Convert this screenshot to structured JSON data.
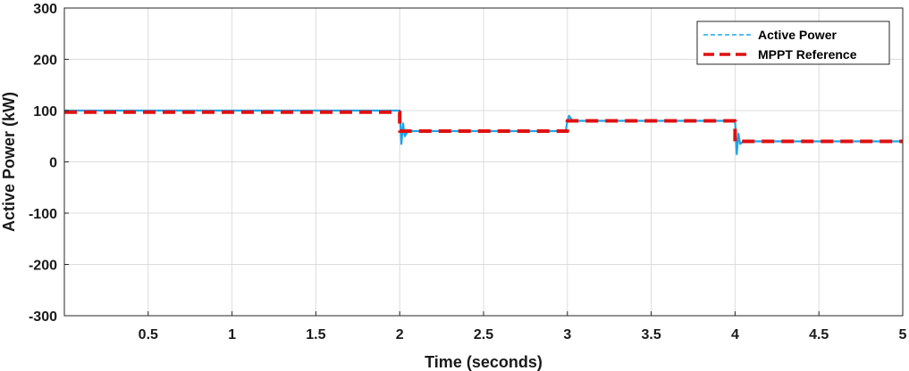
{
  "chart_data": {
    "type": "line",
    "title": "",
    "xlabel": "Time (seconds)",
    "ylabel": "Active Power (kW)",
    "xlim": [
      0.0,
      5.0
    ],
    "ylim": [
      -300,
      300
    ],
    "xticks": [
      0.5,
      1,
      1.5,
      2,
      2.5,
      3,
      3.5,
      4,
      4.5,
      5
    ],
    "xtick_labels": [
      "0.5",
      "1",
      "1.5",
      "2",
      "2.5",
      "3",
      "3.5",
      "4",
      "4.5",
      "5"
    ],
    "yticks": [
      -300,
      -200,
      -100,
      0,
      100,
      200,
      300
    ],
    "ytick_labels": [
      "-300",
      "-200",
      "-100",
      "0",
      "100",
      "200",
      "300"
    ],
    "grid": true,
    "legend_position": "top-right",
    "series": [
      {
        "name": "Active Power",
        "color": "#1ea5e8",
        "style": "dashed",
        "x": [
          0.0,
          1.99,
          2.0,
          2.01,
          2.02,
          2.03,
          2.05,
          2.99,
          3.0,
          3.01,
          3.03,
          3.99,
          4.0,
          4.01,
          4.02,
          4.03,
          4.05,
          5.0
        ],
        "y": [
          100,
          100,
          100,
          35,
          75,
          50,
          60,
          60,
          80,
          90,
          80,
          80,
          80,
          15,
          55,
          35,
          40,
          40
        ]
      },
      {
        "name": "MPPT Reference",
        "color": "#e01010",
        "style": "dashed",
        "x": [
          0.0,
          2.0,
          2.0,
          3.0,
          3.0,
          4.0,
          4.0,
          5.0
        ],
        "y": [
          97,
          97,
          60,
          60,
          80,
          80,
          40,
          40
        ]
      }
    ]
  }
}
